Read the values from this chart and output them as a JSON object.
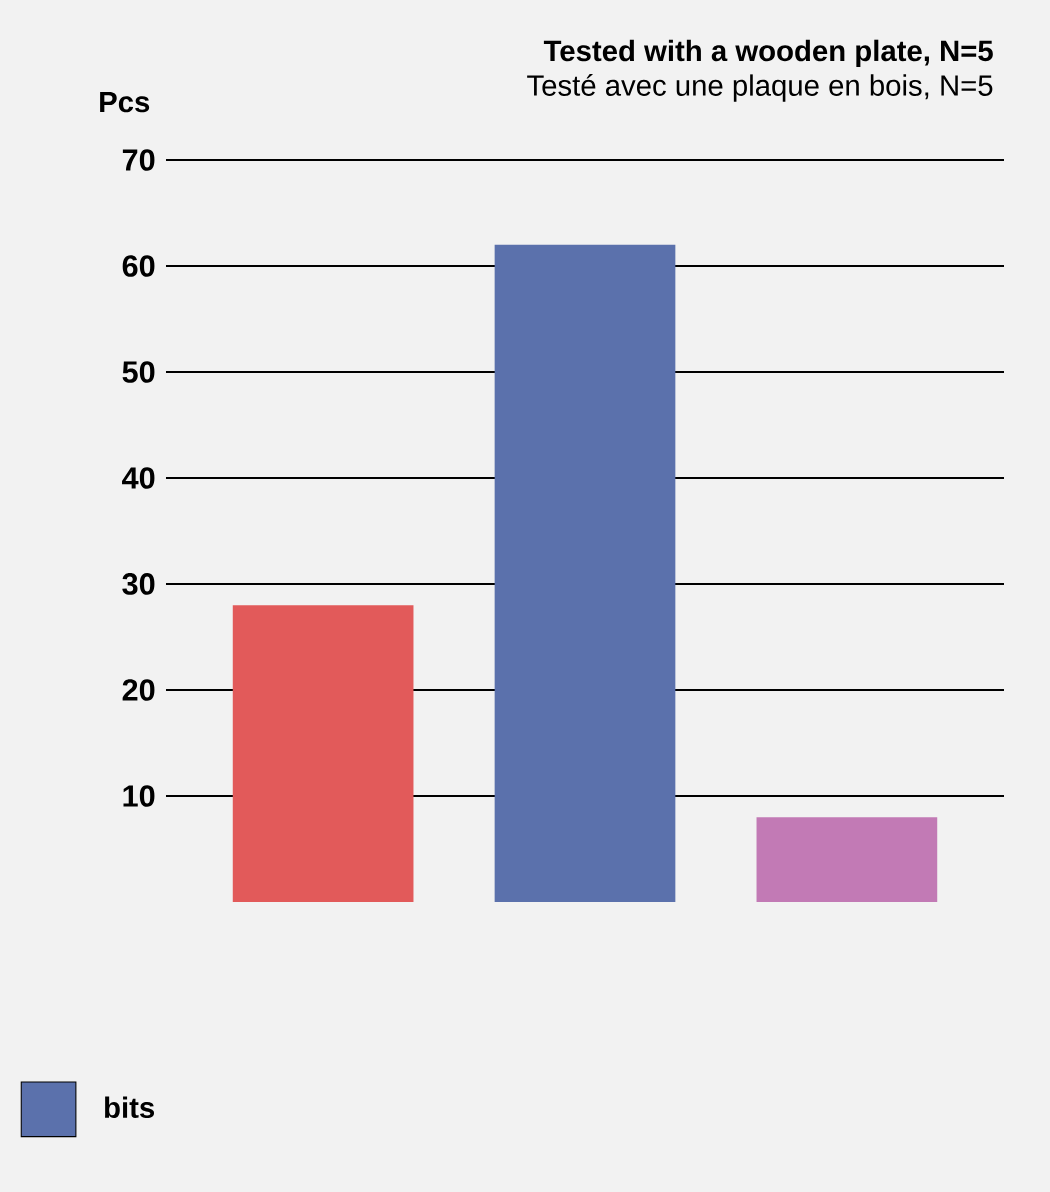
{
  "chart_data": {
    "type": "bar",
    "title": "Tested with a wooden plate, N=5",
    "subtitle": "Testé avec une plaque en bois, N=5",
    "ylabel": "Pcs",
    "categories": [
      null,
      null,
      null
    ],
    "series": [
      {
        "color": "#e25a5a",
        "values": [
          28,
          null,
          null
        ]
      },
      {
        "name": "bits",
        "color": "#5b71ac",
        "values": [
          null,
          62,
          null
        ]
      },
      {
        "color": "#c27ab5",
        "values": [
          null,
          null,
          8
        ]
      }
    ],
    "ylim": [
      0,
      70
    ],
    "yticks": [
      10,
      20,
      30,
      40,
      50,
      60,
      70
    ],
    "grid": "y",
    "legend": "bottom left"
  }
}
